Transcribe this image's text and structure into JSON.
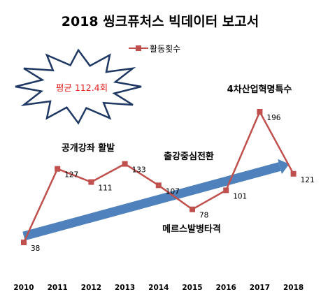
{
  "chart_data": {
    "type": "line",
    "title": "2018 씽크퓨처스 빅데이터 보고서",
    "categories": [
      "2010",
      "2011",
      "2012",
      "2013",
      "2014",
      "2015",
      "2016",
      "2017",
      "2018"
    ],
    "series": [
      {
        "name": "활동횟수",
        "values": [
          38,
          127,
          111,
          133,
          107,
          78,
          101,
          196,
          121
        ],
        "color": "#c0504d"
      }
    ],
    "ylim": [
      0,
      240
    ],
    "grid": false,
    "legend": "top-center",
    "trend_arrow": {
      "from": 38,
      "to": 121,
      "color": "#4f81bd"
    },
    "burst": {
      "text": "평균 112.4회",
      "text_color": "#e02020",
      "outline_color": "#1f3864"
    },
    "annotations": [
      "공개강좌 활발",
      "출강중심전환",
      "메르스발병타격",
      "4차산업혁명특수"
    ]
  }
}
